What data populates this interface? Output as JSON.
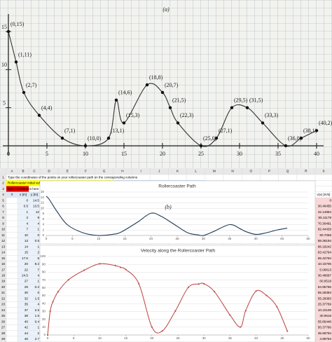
{
  "figure_a": {
    "label": "(a)",
    "xlim": [
      0,
      40
    ],
    "ylim": [
      0,
      15
    ],
    "xticks": [
      0,
      5,
      10,
      15,
      20,
      25,
      30,
      35,
      40
    ],
    "yticks": [
      5,
      10,
      15
    ],
    "points": [
      {
        "label": "(0,15)",
        "x": 0,
        "y": 15
      },
      {
        "label": "(1,11)",
        "x": 1,
        "y": 11
      },
      {
        "label": "(2,7)",
        "x": 2,
        "y": 7
      },
      {
        "label": "(4,4)",
        "x": 4,
        "y": 4
      },
      {
        "label": "(7,1)",
        "x": 7,
        "y": 1
      },
      {
        "label": "(10,0)",
        "x": 10,
        "y": 0
      },
      {
        "label": "(13,1)",
        "x": 13,
        "y": 1
      },
      {
        "label": "(14,6)",
        "x": 14,
        "y": 6
      },
      {
        "label": "(15,3)",
        "x": 15,
        "y": 3
      },
      {
        "label": "(18,8)",
        "x": 18,
        "y": 8
      },
      {
        "label": "(20,7)",
        "x": 20,
        "y": 7
      },
      {
        "label": "(21,5)",
        "x": 21,
        "y": 5
      },
      {
        "label": "(22,3)",
        "x": 22,
        "y": 3
      },
      {
        "label": "(25,0)",
        "x": 25,
        "y": 0
      },
      {
        "label": "(27,1)",
        "x": 27,
        "y": 1
      },
      {
        "label": "(29,5)",
        "x": 29,
        "y": 5
      },
      {
        "label": "(31,5)",
        "x": 31,
        "y": 5
      },
      {
        "label": "(33,3)",
        "x": 33,
        "y": 3
      },
      {
        "label": "(36,0)",
        "x": 36,
        "y": 0
      },
      {
        "label": "(38,1)",
        "x": 38,
        "y": 1
      },
      {
        "label": "(40,2)",
        "x": 40,
        "y": 2
      }
    ]
  },
  "label_b": "(b)",
  "spreadsheet": {
    "columns": [
      "A",
      "B",
      "C",
      "D",
      "E",
      "F",
      "G",
      "H",
      "I",
      "J",
      "K",
      "L",
      "M",
      "N",
      "O",
      "P",
      "Q",
      "R",
      "S"
    ],
    "row_numbers": [
      1,
      2,
      3,
      4,
      5,
      6,
      7,
      8,
      9,
      10,
      11,
      12,
      13,
      14,
      15,
      16,
      17,
      18,
      19,
      20,
      21,
      22,
      23,
      24,
      25,
      26,
      27,
      28,
      29
    ],
    "instruction": "Type the coordinates of the points on your rollercoaster path on the corresponding columns",
    "velocity_note": "Rollercoaster initial velocity = 0 always",
    "mass_label": "Marble mass=",
    "mass_value": "4 grams",
    "input_hint": "Type coordinates here",
    "index_header": "#",
    "x_header": "x [m]",
    "y_header": "y [m]",
    "v_header": "v(x) [m/s]",
    "x": [
      0,
      0.5,
      1,
      2,
      4,
      7,
      10,
      13,
      14,
      15,
      17.5,
      20,
      22,
      24.5,
      27,
      29,
      30,
      32,
      35,
      37,
      38,
      40,
      42,
      44,
      46
    ],
    "y": [
      14.5,
      13.5,
      12,
      9,
      4,
      1,
      0,
      0.5,
      1,
      2,
      5,
      8.2,
      7,
      4,
      1,
      0.2,
      0,
      1.5,
      4,
      2.5,
      1.5,
      0.4,
      1,
      2,
      2.7
    ],
    "v": [
      0,
      30.46455,
      42.14964,
      55.11178,
      70.30491,
      82.44429,
      90.7066,
      88.38194,
      86.18242,
      83.42794,
      65.42794,
      10.15706,
      5.06813,
      30.48697,
      60.6519,
      64.95766,
      65.28383,
      55.28383,
      25.37769,
      10.10109,
      30.9616,
      55.86448,
      50.37766,
      35.89794,
      4.89794
    ]
  },
  "path_chart": {
    "title": "Rollercoaster Path",
    "xlim": [
      0,
      50
    ],
    "xticks": [
      0,
      5,
      10,
      15,
      20,
      25,
      30,
      35,
      40,
      45,
      50
    ],
    "ylim": [
      0,
      16
    ],
    "yticks": [
      0,
      2,
      4,
      6,
      8,
      10,
      12,
      14,
      16
    ]
  },
  "velocity_chart": {
    "title": "Velocity along the Rollercoaster Path",
    "xlim": [
      0,
      50
    ],
    "xticks": [
      0,
      5,
      10,
      15,
      20,
      25,
      30,
      35,
      40,
      45,
      50
    ],
    "ylim": [
      0,
      100
    ],
    "yticks": [
      0,
      10,
      20,
      30,
      40,
      50,
      60,
      70,
      80,
      90,
      100
    ]
  }
}
